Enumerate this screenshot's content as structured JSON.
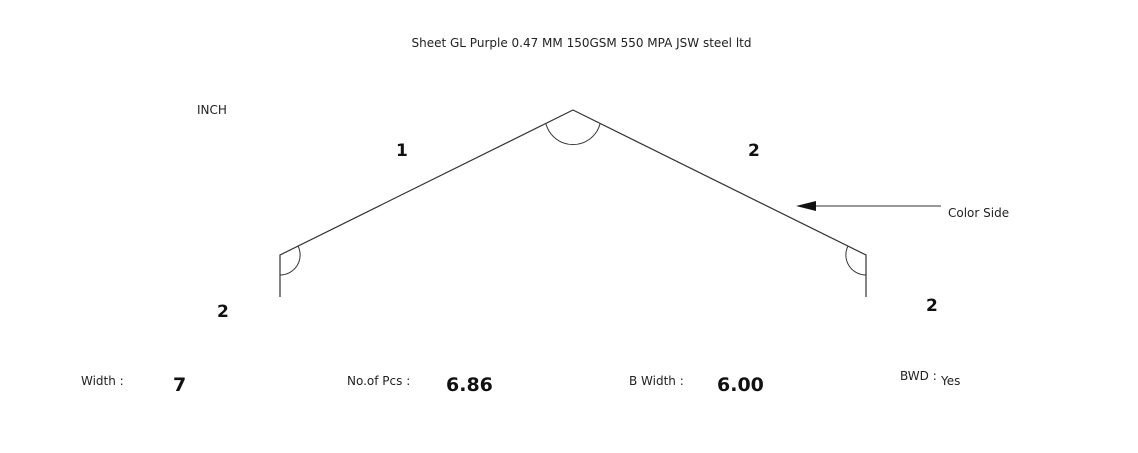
{
  "title": "Sheet GL Purple 0.47 MM 150GSM 550 MPA JSW steel ltd",
  "unit": "INCH",
  "dimensions": {
    "left_slope": "1",
    "right_slope": "2",
    "left_leg": "2",
    "right_leg": "2"
  },
  "color_side_label": "Color Side",
  "footer": {
    "width_label": "Width :",
    "width_value": "7",
    "pcs_label": "No.of Pcs :",
    "pcs_value": "6.86",
    "bwidth_label": "B Width :",
    "bwidth_value": "6.00",
    "bwd_label": "BWD :",
    "bwd_value": "Yes"
  }
}
